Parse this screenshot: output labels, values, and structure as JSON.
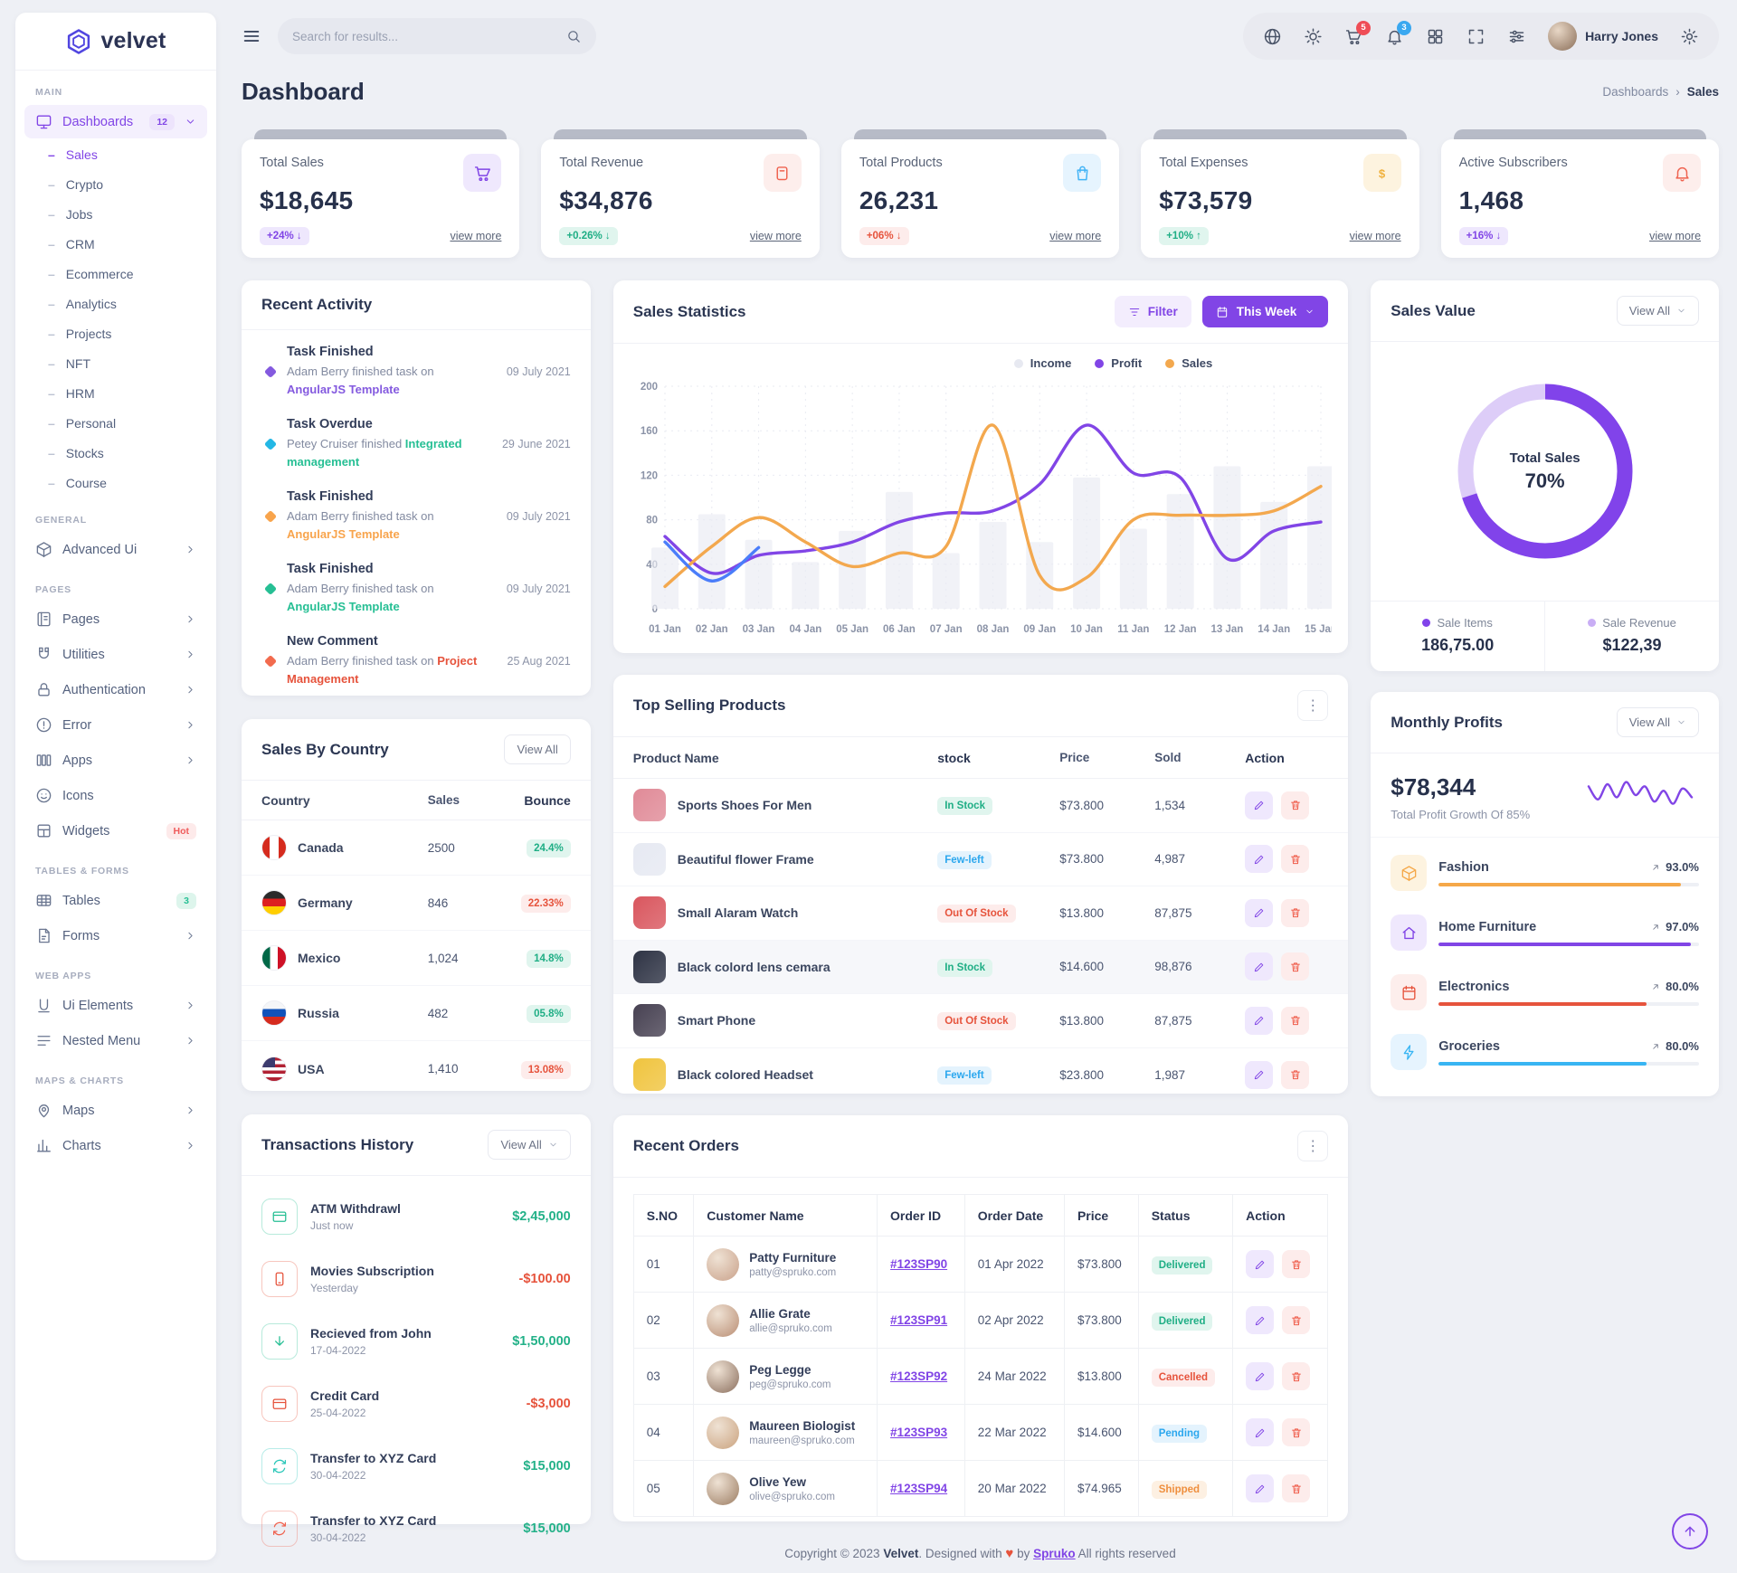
{
  "brand": {
    "name": "velvet"
  },
  "topbar": {
    "search_placeholder": "Search for results...",
    "user_name": "Harry Jones",
    "cart_badge": "5",
    "bell_badge": "3"
  },
  "page": {
    "title": "Dashboard",
    "breadcrumb": {
      "root": "Dashboards",
      "separator": "›",
      "current": "Sales"
    }
  },
  "sidebar": {
    "sections": [
      {
        "label": "MAIN",
        "items": [
          {
            "icon": "monitor",
            "label": "Dashboards",
            "badge": "12",
            "badge_style": "primary",
            "chevron": "down",
            "active": true,
            "children": [
              "Sales",
              "Crypto",
              "Jobs",
              "CRM",
              "Ecommerce",
              "Analytics",
              "Projects",
              "NFT",
              "HRM",
              "Personal",
              "Stocks",
              "Course"
            ],
            "active_child": "Sales"
          }
        ]
      },
      {
        "label": "GENERAL",
        "items": [
          {
            "icon": "cube",
            "label": "Advanced Ui",
            "chevron": "right"
          }
        ]
      },
      {
        "label": "PAGES",
        "items": [
          {
            "icon": "pages",
            "label": "Pages",
            "chevron": "right"
          },
          {
            "icon": "magnet",
            "label": "Utilities",
            "chevron": "right"
          },
          {
            "icon": "lock",
            "label": "Authentication",
            "chevron": "right"
          },
          {
            "icon": "alert",
            "label": "Error",
            "chevron": "right"
          },
          {
            "icon": "apps",
            "label": "Apps",
            "chevron": "right"
          },
          {
            "icon": "smiley",
            "label": "Icons"
          },
          {
            "icon": "widgets",
            "label": "Widgets",
            "badge": "Hot",
            "badge_style": "hot"
          }
        ]
      },
      {
        "label": "TABLES & FORMS",
        "items": [
          {
            "icon": "table",
            "label": "Tables",
            "badge": "3",
            "badge_style": "success"
          },
          {
            "icon": "doc",
            "label": "Forms",
            "chevron": "right"
          }
        ]
      },
      {
        "label": "WEB APPS",
        "items": [
          {
            "icon": "uelem",
            "label": "Ui Elements",
            "chevron": "right"
          },
          {
            "icon": "menu",
            "label": "Nested Menu",
            "chevron": "right"
          }
        ]
      },
      {
        "label": "MAPS & CHARTS",
        "items": [
          {
            "icon": "pin",
            "label": "Maps",
            "chevron": "right"
          },
          {
            "icon": "chart",
            "label": "Charts",
            "chevron": "right"
          }
        ]
      }
    ]
  },
  "kpis": [
    {
      "label": "Total Sales",
      "value": "$18,645",
      "delta": "+24%",
      "arrow": "↓",
      "delta_tone": "t-purple",
      "icon": "cart",
      "icon_tone": "tone-purple-bg",
      "link": "view more"
    },
    {
      "label": "Total Revenue",
      "value": "$34,876",
      "delta": "+0.26%",
      "arrow": "↓",
      "delta_tone": "t-green",
      "icon": "bin",
      "icon_tone": "tone-red-bg",
      "link": "view more"
    },
    {
      "label": "Total Products",
      "value": "26,231",
      "delta": "+06%",
      "arrow": "↓",
      "delta_tone": "t-red",
      "icon": "bag",
      "icon_tone": "tone-blue-bg",
      "link": "view more"
    },
    {
      "label": "Total Expenses",
      "value": "$73,579",
      "delta": "+10%",
      "arrow": "↑",
      "delta_tone": "t-green",
      "icon": "dollar",
      "icon_tone": "tone-yellow-bg",
      "link": "view more"
    },
    {
      "label": "Active Subscribers",
      "value": "1,468",
      "delta": "+16%",
      "arrow": "↓",
      "delta_tone": "t-purple",
      "icon": "bell",
      "icon_tone": "tone-red-bg",
      "link": "view more"
    }
  ],
  "recent_activity": {
    "title": "Recent Activity",
    "items": [
      {
        "title": "Task Finished",
        "text": "Adam Berry finished task on ",
        "link": "AngularJS Template",
        "link_color": "#845adf",
        "marker": "#845adf",
        "date": "09 July 2021"
      },
      {
        "title": "Task Overdue",
        "text": "Petey Cruiser finished ",
        "link": "Integrated management",
        "link_color": "#26bf94",
        "marker": "#23b7e5",
        "date": "29 June 2021"
      },
      {
        "title": "Task Finished",
        "text": "Adam Berry finished task on ",
        "link": "AngularJS Template",
        "link_color": "#f8a44c",
        "marker": "#f8a44c",
        "date": "09 July 2021"
      },
      {
        "title": "Task Finished",
        "text": "Adam Berry finished task on ",
        "link": "AngularJS Template",
        "link_color": "#26bf94",
        "marker": "#26bf94",
        "date": "09 July 2021"
      },
      {
        "title": "New Comment",
        "text": "Adam Berry finished task on ",
        "link": "Project Management",
        "link_color": "#e6533c",
        "marker": "#f26b4e",
        "date": "25 Aug 2021"
      }
    ]
  },
  "sales_statistics": {
    "title": "Sales Statistics",
    "filter_label": "Filter",
    "range_label": "This Week",
    "chart_data": {
      "type": "bar+line",
      "categories": [
        "01 Jan",
        "02 Jan",
        "03 Jan",
        "04 Jan",
        "05 Jan",
        "06 Jan",
        "07 Jan",
        "08 Jan",
        "09 Jan",
        "10 Jan",
        "11 Jan",
        "12 Jan",
        "13 Jan",
        "14 Jan",
        "15 Jan"
      ],
      "y_ticks": [
        0,
        40,
        80,
        120,
        160,
        200
      ],
      "ylim": [
        0,
        200
      ],
      "legend": [
        {
          "name": "Income",
          "color": "#e7e9f1"
        },
        {
          "name": "Profit",
          "color": "#8145e6"
        },
        {
          "name": "Sales",
          "color": "#f3a84e"
        }
      ],
      "bars": {
        "name": "Income",
        "color": "#e9ebf3",
        "values": [
          55,
          85,
          62,
          42,
          70,
          105,
          50,
          78,
          60,
          118,
          72,
          103,
          128,
          96,
          128
        ]
      },
      "lines": [
        {
          "name": "Profit",
          "color": "#8145e6",
          "values": [
            65,
            32,
            48,
            52,
            60,
            78,
            86,
            88,
            112,
            165,
            122,
            118,
            45,
            70,
            78
          ]
        },
        {
          "name": "Sales",
          "color": "#f3a84e",
          "values": [
            20,
            56,
            82,
            60,
            38,
            50,
            56,
            165,
            30,
            28,
            80,
            84,
            84,
            88,
            110
          ]
        }
      ],
      "accent_line": {
        "name": "Income highlight",
        "color": "#4a7dfa",
        "values": [
          60,
          25,
          55
        ]
      }
    }
  },
  "sales_value": {
    "title": "Sales Value",
    "view_all": "View All",
    "center_label": "Total Sales",
    "center_value": "70%",
    "percent": 70,
    "donut_colors": {
      "fill": "#8143ea",
      "rest": "#ddcdf8"
    },
    "legend": [
      {
        "label": "Sale Items",
        "value": "186,75.00",
        "color": "#8143ea"
      },
      {
        "label": "Sale Revenue",
        "value": "$122,39",
        "color": "#c9aef5"
      }
    ]
  },
  "sales_by_country": {
    "title": "Sales By Country",
    "view_all": "View All",
    "columns": [
      "Country",
      "Sales",
      "Bounce"
    ],
    "rows": [
      {
        "country": "Canada",
        "flag": "canada",
        "sales": "2500",
        "bounce": "24.4%",
        "tone": "t-green"
      },
      {
        "country": "Germany",
        "flag": "germany",
        "sales": "846",
        "bounce": "22.33%",
        "tone": "t-red"
      },
      {
        "country": "Mexico",
        "flag": "mexico",
        "sales": "1,024",
        "bounce": "14.8%",
        "tone": "t-green"
      },
      {
        "country": "Russia",
        "flag": "russia",
        "sales": "482",
        "bounce": "05.8%",
        "tone": "t-green"
      },
      {
        "country": "USA",
        "flag": "usa",
        "sales": "1,410",
        "bounce": "13.08%",
        "tone": "t-red"
      }
    ]
  },
  "top_selling": {
    "title": "Top Selling Products",
    "columns": [
      "Product Name",
      "stock",
      "Price",
      "Sold",
      "Action"
    ],
    "rows": [
      {
        "name": "Sports Shoes For Men",
        "stock": "In Stock",
        "stock_tone": "t-green",
        "price": "$73.800",
        "sold": "1,534",
        "thumb": "#e08a97",
        "highlight": false
      },
      {
        "name": "Beautiful flower Frame",
        "stock": "Few-left",
        "stock_tone": "t-blue",
        "price": "$73.800",
        "sold": "4,987",
        "thumb": "#e6e9f2",
        "highlight": false
      },
      {
        "name": "Small Alaram Watch",
        "stock": "Out Of Stock",
        "stock_tone": "t-red",
        "price": "$13.800",
        "sold": "87,875",
        "thumb": "#d9565e",
        "highlight": false
      },
      {
        "name": "Black colord lens cemara",
        "stock": "In Stock",
        "stock_tone": "t-green",
        "price": "$14.600",
        "sold": "98,876",
        "thumb": "#2e3344",
        "highlight": true
      },
      {
        "name": "Smart Phone",
        "stock": "Out Of Stock",
        "stock_tone": "t-red",
        "price": "$13.800",
        "sold": "87,875",
        "thumb": "#474152",
        "highlight": false
      },
      {
        "name": "Black colored Headset",
        "stock": "Few-left",
        "stock_tone": "t-blue",
        "price": "$23.800",
        "sold": "1,987",
        "thumb": "#f0c43e",
        "highlight": false
      }
    ]
  },
  "monthly_profits": {
    "title": "Monthly Profits",
    "view_all": "View All",
    "value": "$78,344",
    "subtitle": "Total Profit Growth Of 85%",
    "spark": [
      14,
      8,
      15,
      9,
      16,
      10,
      14,
      7,
      12,
      6,
      13,
      9
    ],
    "spark_color": "#8145e6",
    "rows": [
      {
        "label": "Fashion",
        "pct": "93.0%",
        "value": 93,
        "color": "#f5a849",
        "icon": "cube",
        "icon_bg": "#fdf3e0"
      },
      {
        "label": "Home Furniture",
        "pct": "97.0%",
        "value": 97,
        "color": "#8145e6",
        "icon": "home",
        "icon_bg": "#efe8fd"
      },
      {
        "label": "Electronics",
        "pct": "80.0%",
        "value": 80,
        "color": "#e6533c",
        "icon": "calendar",
        "icon_bg": "#fdeeec"
      },
      {
        "label": "Groceries",
        "pct": "80.0%",
        "value": 80,
        "color": "#38b5f3",
        "icon": "bolt",
        "icon_bg": "#e6f4fe"
      }
    ]
  },
  "transactions": {
    "title": "Transactions History",
    "view_all": "View All",
    "rows": [
      {
        "label": "ATM Withdrawl",
        "sub": "Just now",
        "amount": "$2,45,000",
        "tone": "amt-green",
        "icon": "card",
        "icon_color": "#26bf94"
      },
      {
        "label": "Movies Subscription",
        "sub": "Yesterday",
        "amount": "-$100.00",
        "tone": "amt-red",
        "icon": "phone",
        "icon_color": "#e6533c"
      },
      {
        "label": "Recieved from John",
        "sub": "17-04-2022",
        "amount": "$1,50,000",
        "tone": "amt-green",
        "icon": "down",
        "icon_color": "#26bf94"
      },
      {
        "label": "Credit Card",
        "sub": "25-04-2022",
        "amount": "-$3,000",
        "tone": "amt-red",
        "icon": "card",
        "icon_color": "#e6533c"
      },
      {
        "label": "Transfer to XYZ Card",
        "sub": "30-04-2022",
        "amount": "$15,000",
        "tone": "amt-green",
        "icon": "refresh",
        "icon_color": "#2bc7b9"
      },
      {
        "label": "Transfer to XYZ Card",
        "sub": "30-04-2022",
        "amount": "$15,000",
        "tone": "amt-green",
        "icon": "refresh",
        "icon_color": "#ef6350"
      }
    ]
  },
  "recent_orders": {
    "title": "Recent Orders",
    "columns": [
      "S.NO",
      "Customer Name",
      "Order ID",
      "Order Date",
      "Price",
      "Status",
      "Action"
    ],
    "rows": [
      {
        "sno": "01",
        "name": "Patty Furniture",
        "email": "patty@spruko.com",
        "order_id": "#123SP90",
        "date": "01 Apr 2022",
        "price": "$73.800",
        "status": "Delivered",
        "status_tone": "t-green"
      },
      {
        "sno": "02",
        "name": "Allie Grate",
        "email": "allie@spruko.com",
        "order_id": "#123SP91",
        "date": "02 Apr 2022",
        "price": "$73.800",
        "status": "Delivered",
        "status_tone": "t-green"
      },
      {
        "sno": "03",
        "name": "Peg Legge",
        "email": "peg@spruko.com",
        "order_id": "#123SP92",
        "date": "24 Mar 2022",
        "price": "$13.800",
        "status": "Cancelled",
        "status_tone": "t-red"
      },
      {
        "sno": "04",
        "name": "Maureen Biologist",
        "email": "maureen@spruko.com",
        "order_id": "#123SP93",
        "date": "22 Mar 2022",
        "price": "$14.600",
        "status": "Pending",
        "status_tone": "t-blue"
      },
      {
        "sno": "05",
        "name": "Olive Yew",
        "email": "olive@spruko.com",
        "order_id": "#123SP94",
        "date": "20 Mar 2022",
        "price": "$74.965",
        "status": "Shipped",
        "status_tone": "t-orange"
      }
    ]
  },
  "footer": {
    "pre": "Copyright © 2023",
    "brand": "Velvet",
    "mid": ". Designed with",
    "heart": "♥",
    "by": "by",
    "link": "Spruko",
    "post": "All rights reserved"
  }
}
